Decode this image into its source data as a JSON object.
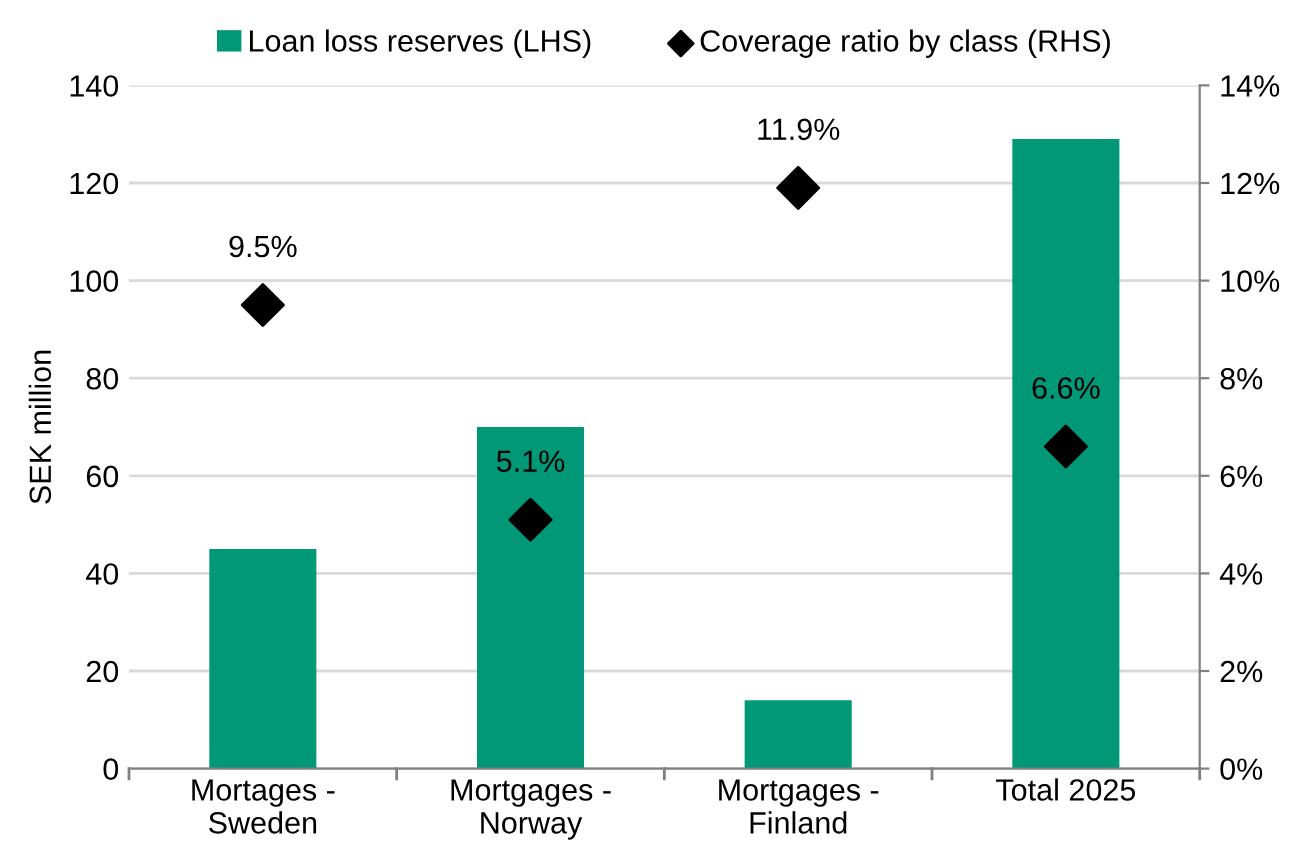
{
  "chart_data": {
    "type": "bar",
    "ylabel": "SEK million",
    "categories": [
      "Mortages -\nSweden",
      "Mortgages -\nNorway",
      "Mortgages -\nFinland",
      "Total 2025"
    ],
    "series": [
      {
        "name": "Loan loss reserves (LHS)",
        "color": "#009877",
        "values": [
          45,
          70,
          14,
          129
        ]
      },
      {
        "name": "Coverage ratio by class (RHS)",
        "type": "scatter",
        "axis": "y2",
        "color": "#000000",
        "marker": "diamond",
        "values": [
          9.5,
          5.1,
          11.9,
          6.6
        ],
        "value_labels": [
          "9.5%",
          "5.1%",
          "11.9%",
          "6.6%"
        ]
      }
    ],
    "ylim": [
      0,
      140
    ],
    "yticks": [
      0,
      20,
      40,
      60,
      80,
      100,
      120,
      140
    ],
    "y2lim": [
      0,
      14
    ],
    "y2ticks": [
      {
        "value": 0,
        "label": "0%"
      },
      {
        "value": 2,
        "label": "2%"
      },
      {
        "value": 4,
        "label": "4%"
      },
      {
        "value": 6,
        "label": "6%"
      },
      {
        "value": 8,
        "label": "8%"
      },
      {
        "value": 10,
        "label": "10%"
      },
      {
        "value": 12,
        "label": "12%"
      },
      {
        "value": 14,
        "label": "14%"
      }
    ],
    "grid": "y",
    "legend": "top"
  }
}
